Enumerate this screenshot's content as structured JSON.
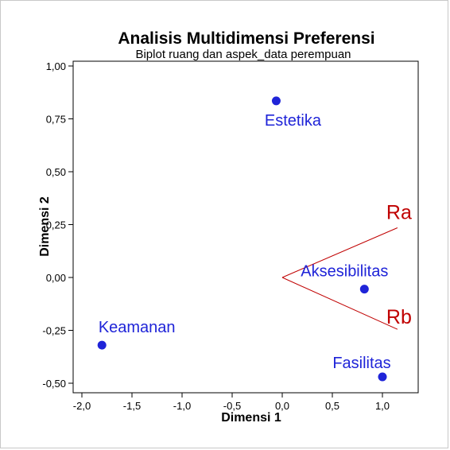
{
  "chart_data": {
    "type": "scatter",
    "title": "Analisis Multidimensi Preferensi",
    "subtitle": "Biplot ruang dan aspek_data perempuan",
    "xlabel": "Dimensi 1",
    "ylabel": "Dimensi 2",
    "xlim": [
      -2.0,
      1.35
    ],
    "ylim": [
      -0.55,
      1.02
    ],
    "x_ticks": [
      -2.0,
      -1.5,
      -1.0,
      -0.5,
      0.0,
      0.5,
      1.0
    ],
    "x_tick_labels": [
      "-2,0",
      "-1,5",
      "-1,0",
      "-0,5",
      "0,0",
      "0,5",
      "1,0"
    ],
    "y_ticks": [
      1.0,
      0.75,
      0.5,
      0.25,
      0.0,
      -0.25,
      -0.5
    ],
    "y_tick_labels": [
      "1,00",
      "0,75",
      "0,50",
      "0,25",
      "0,00",
      "-0,25",
      "-0,50"
    ],
    "grid": false,
    "point_color": "#1f24d8",
    "vector_color": "#c00000",
    "points": [
      {
        "label": "Estetika",
        "x": -0.06,
        "y": 0.835
      },
      {
        "label": "Aksesibilitas",
        "x": 0.82,
        "y": -0.055
      },
      {
        "label": "Keamanan",
        "x": -1.8,
        "y": -0.32
      },
      {
        "label": "Fasilitas",
        "x": 1.0,
        "y": -0.47
      }
    ],
    "vectors": [
      {
        "label": "Ra",
        "x": 1.15,
        "y": 0.235
      },
      {
        "label": "Rb",
        "x": 1.15,
        "y": -0.245
      }
    ]
  }
}
